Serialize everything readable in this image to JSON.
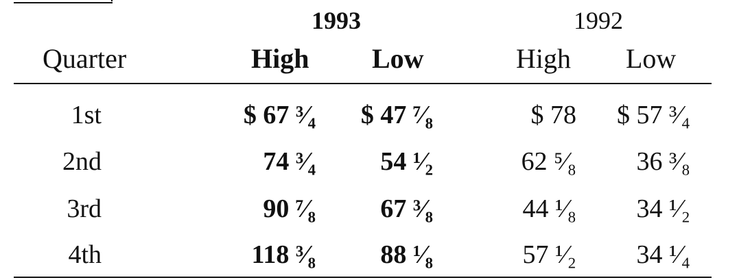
{
  "table": {
    "years": [
      "1993",
      "1992"
    ],
    "headers": {
      "quarter": "Quarter",
      "high_1993": "High",
      "low_1993": "Low",
      "high_1992": "High",
      "low_1992": "Low"
    },
    "rows": [
      {
        "quarter": "1st",
        "high_1993": "$ 67 ³⁄₄",
        "low_1993": "$ 47 ⁷⁄₈",
        "high_1992": "$ 78",
        "low_1992": "$ 57 ³⁄₄"
      },
      {
        "quarter": "2nd",
        "high_1993": "74 ³⁄₄",
        "low_1993": "54 ¹⁄₂",
        "high_1992": "62 ⁵⁄₈",
        "low_1992": "36 ³⁄₈"
      },
      {
        "quarter": "3rd",
        "high_1993": "90 ⁷⁄₈",
        "low_1993": "67 ³⁄₈",
        "high_1992": "44 ¹⁄₈",
        "low_1992": "34 ¹⁄₂"
      },
      {
        "quarter": "4th",
        "high_1993": "118 ³⁄₈",
        "low_1993": "88 ¹⁄₈",
        "high_1992": "57 ¹⁄₂",
        "low_1992": "34 ¹⁄₄"
      }
    ]
  }
}
